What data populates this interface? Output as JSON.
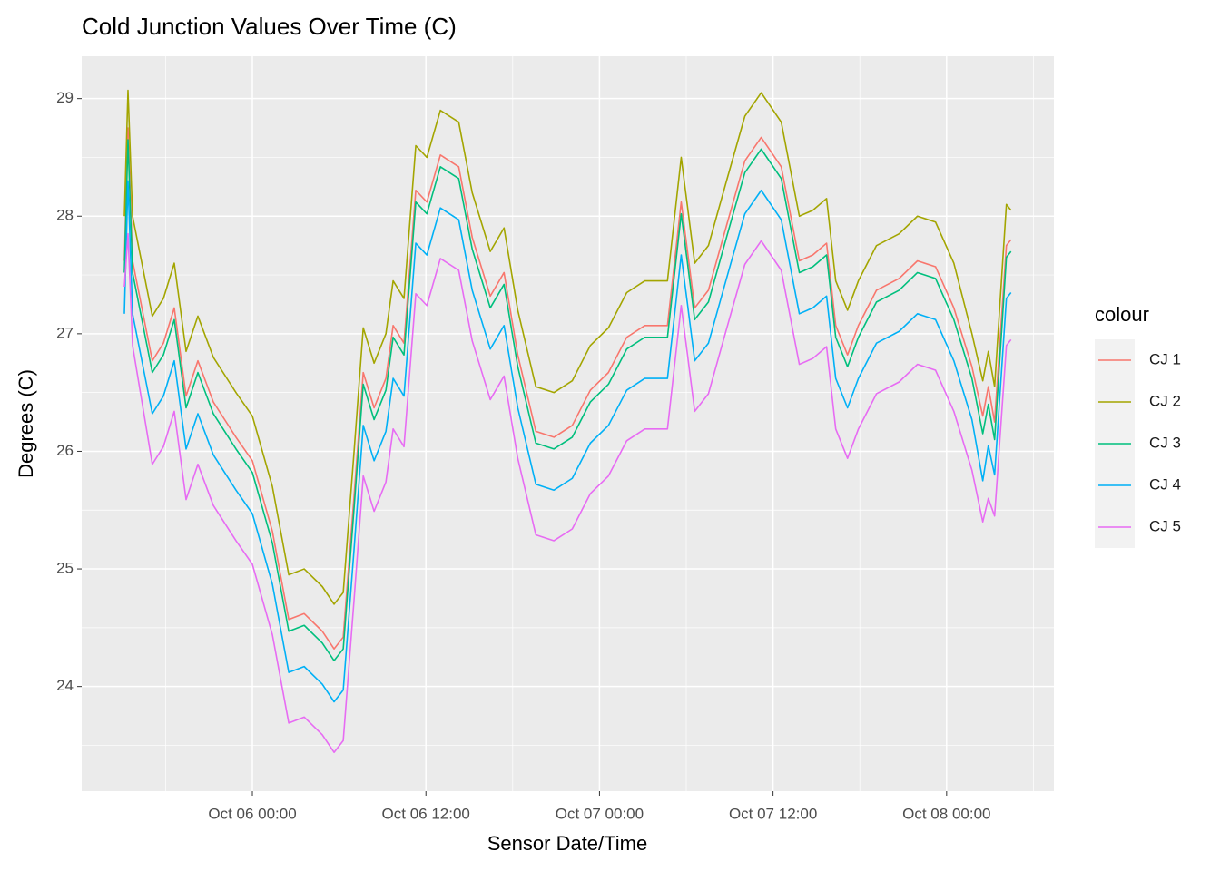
{
  "chart_data": {
    "type": "line",
    "title": "Cold Junction Values Over Time (C)",
    "x_label": "Sensor Date/Time",
    "y_label": "Degrees (C)",
    "legend_title": "colour",
    "legend": "right",
    "grid": true,
    "xlim": [
      "Oct 05 12:12",
      "Oct 08 07:25"
    ],
    "xticks": [
      "Oct 06 00:00",
      "Oct 06 12:00",
      "Oct 07 00:00",
      "Oct 07 12:00",
      "Oct 08 00:00"
    ],
    "ylim": [
      23.11,
      29.36
    ],
    "yticks": [
      24,
      25,
      26,
      27,
      28,
      29
    ],
    "x": [
      "Oct 05 15:09",
      "Oct 05 15:24",
      "Oct 05 15:43",
      "Oct 05 17:05",
      "Oct 05 17:51",
      "Oct 05 18:36",
      "Oct 05 19:25",
      "Oct 05 20:14",
      "Oct 05 21:18",
      "Oct 05 22:52",
      "Oct 06 00:00",
      "Oct 06 01:23",
      "Oct 06 02:31",
      "Oct 06 03:35",
      "Oct 06 04:50",
      "Oct 06 05:39",
      "Oct 06 06:17",
      "Oct 06 07:02",
      "Oct 06 07:40",
      "Oct 06 08:25",
      "Oct 06 09:14",
      "Oct 06 09:44",
      "Oct 06 10:29",
      "Oct 06 11:18",
      "Oct 06 12:04",
      "Oct 06 13:00",
      "Oct 06 14:16",
      "Oct 06 15:12",
      "Oct 06 16:27",
      "Oct 06 17:24",
      "Oct 06 18:21",
      "Oct 06 19:36",
      "Oct 06 20:51",
      "Oct 06 22:07",
      "Oct 06 23:22",
      "Oct 07 00:37",
      "Oct 07 01:53",
      "Oct 07 03:08",
      "Oct 07 04:42",
      "Oct 07 05:39",
      "Oct 07 06:35",
      "Oct 07 07:32",
      "Oct 07 08:47",
      "Oct 07 10:03",
      "Oct 07 11:11",
      "Oct 07 12:34",
      "Oct 07 13:49",
      "Oct 07 14:45",
      "Oct 07 15:42",
      "Oct 07 16:20",
      "Oct 07 17:09",
      "Oct 07 17:54",
      "Oct 07 19:09",
      "Oct 07 20:43",
      "Oct 07 21:59",
      "Oct 07 23:14",
      "Oct 08 00:30",
      "Oct 08 01:45",
      "Oct 08 02:30",
      "Oct 08 02:53",
      "Oct 08 03:19",
      "Oct 08 04:08",
      "Oct 08 04:27"
    ],
    "series": [
      {
        "name": "CJ 1",
        "color": "#F8766D",
        "values": [
          27.62,
          28.75,
          27.62,
          26.77,
          26.92,
          27.22,
          26.47,
          26.77,
          26.42,
          26.12,
          25.92,
          25.32,
          24.57,
          24.62,
          24.47,
          24.32,
          24.42,
          25.62,
          26.67,
          26.37,
          26.62,
          27.07,
          26.92,
          28.22,
          28.12,
          28.52,
          28.42,
          27.82,
          27.32,
          27.52,
          26.82,
          26.17,
          26.12,
          26.22,
          26.52,
          26.67,
          26.97,
          27.07,
          27.07,
          28.12,
          27.22,
          27.37,
          27.92,
          28.47,
          28.67,
          28.42,
          27.62,
          27.67,
          27.77,
          27.07,
          26.82,
          27.07,
          27.37,
          27.47,
          27.62,
          27.57,
          27.22,
          26.72,
          26.3,
          26.55,
          26.25,
          27.75,
          27.8
        ]
      },
      {
        "name": "CJ 2",
        "color": "#A3A500",
        "values": [
          28.0,
          29.07,
          28.0,
          27.15,
          27.3,
          27.6,
          26.85,
          27.15,
          26.8,
          26.5,
          26.3,
          25.7,
          24.95,
          25.0,
          24.85,
          24.7,
          24.8,
          26.0,
          27.05,
          26.75,
          27.0,
          27.45,
          27.3,
          28.6,
          28.5,
          28.9,
          28.8,
          28.2,
          27.7,
          27.9,
          27.2,
          26.55,
          26.5,
          26.6,
          26.9,
          27.05,
          27.35,
          27.45,
          27.45,
          28.5,
          27.6,
          27.75,
          28.3,
          28.85,
          29.05,
          28.8,
          28.0,
          28.05,
          28.15,
          27.45,
          27.2,
          27.45,
          27.75,
          27.85,
          28.0,
          27.95,
          27.6,
          27.0,
          26.6,
          26.85,
          26.55,
          28.1,
          28.05
        ]
      },
      {
        "name": "CJ 3",
        "color": "#00BF7D",
        "values": [
          27.52,
          28.65,
          27.52,
          26.67,
          26.82,
          27.12,
          26.37,
          26.67,
          26.32,
          26.02,
          25.82,
          25.22,
          24.47,
          24.52,
          24.37,
          24.22,
          24.32,
          25.52,
          26.57,
          26.27,
          26.52,
          26.97,
          26.82,
          28.12,
          28.02,
          28.42,
          28.32,
          27.72,
          27.22,
          27.42,
          26.72,
          26.07,
          26.02,
          26.12,
          26.42,
          26.57,
          26.87,
          26.97,
          26.97,
          28.02,
          27.12,
          27.27,
          27.82,
          28.37,
          28.57,
          28.32,
          27.52,
          27.57,
          27.67,
          26.97,
          26.72,
          26.97,
          27.27,
          27.37,
          27.52,
          27.47,
          27.12,
          26.62,
          26.15,
          26.4,
          26.1,
          27.65,
          27.7
        ]
      },
      {
        "name": "CJ 4",
        "color": "#00B0F6",
        "values": [
          27.17,
          28.3,
          27.17,
          26.32,
          26.47,
          26.77,
          26.02,
          26.32,
          25.97,
          25.67,
          25.47,
          24.87,
          24.12,
          24.17,
          24.02,
          23.87,
          23.97,
          25.17,
          26.22,
          25.92,
          26.17,
          26.62,
          26.47,
          27.77,
          27.67,
          28.07,
          27.97,
          27.37,
          26.87,
          27.07,
          26.37,
          25.72,
          25.67,
          25.77,
          26.07,
          26.22,
          26.52,
          26.62,
          26.62,
          27.67,
          26.77,
          26.92,
          27.47,
          28.02,
          28.22,
          27.97,
          27.17,
          27.22,
          27.32,
          26.62,
          26.37,
          26.62,
          26.92,
          27.02,
          27.17,
          27.12,
          26.77,
          26.27,
          25.75,
          26.05,
          25.8,
          27.3,
          27.35
        ]
      },
      {
        "name": "CJ 5",
        "color": "#E76BF3",
        "values": [
          27.4,
          27.85,
          26.9,
          25.89,
          26.04,
          26.34,
          25.59,
          25.89,
          25.54,
          25.24,
          25.04,
          24.44,
          23.69,
          23.74,
          23.59,
          23.44,
          23.54,
          24.74,
          25.79,
          25.49,
          25.74,
          26.19,
          26.04,
          27.34,
          27.24,
          27.64,
          27.54,
          26.94,
          26.44,
          26.64,
          25.94,
          25.29,
          25.24,
          25.34,
          25.64,
          25.79,
          26.09,
          26.19,
          26.19,
          27.24,
          26.34,
          26.49,
          27.04,
          27.59,
          27.79,
          27.54,
          26.74,
          26.79,
          26.89,
          26.19,
          25.94,
          26.19,
          26.49,
          26.59,
          26.74,
          26.69,
          26.34,
          25.84,
          25.4,
          25.6,
          25.45,
          26.9,
          26.95
        ]
      }
    ]
  }
}
